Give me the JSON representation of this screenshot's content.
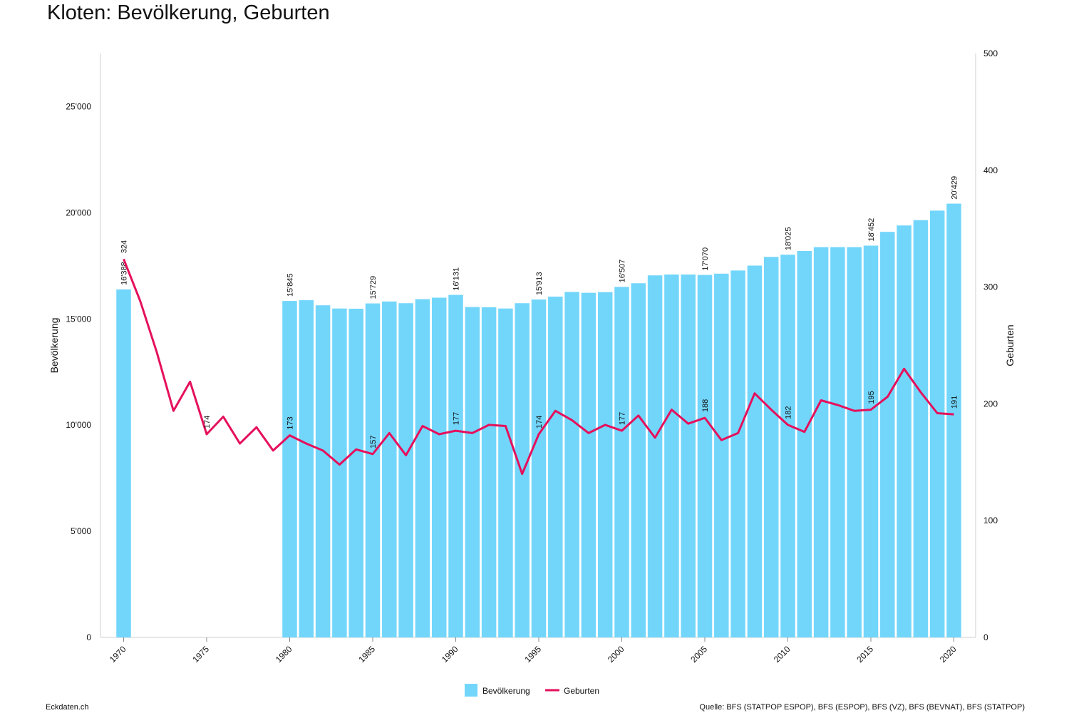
{
  "page": {
    "title": "Kloten: Bevölkerung, Geburten",
    "footer_left": "Eckdaten.ch",
    "footer_right": "Quelle: BFS (STATPOP ESPOP), BFS (ESPOP), BFS (VZ), BFS (BEVNAT), BFS (STATPOP)"
  },
  "chart_data": {
    "type": "bar",
    "x_label_years": [
      1970,
      1975,
      1980,
      1985,
      1990,
      1995,
      2000,
      2005,
      2010,
      2015,
      2020
    ],
    "ylabel_left": "Bevölkerung",
    "ylabel_right": "Geburten",
    "ylim_left": [
      0,
      27500
    ],
    "yticks_left": [
      0,
      5000,
      10000,
      15000,
      20000,
      25000
    ],
    "ytick_labels_left": [
      "0",
      "5'000",
      "10'000",
      "15'000",
      "20'000",
      "25'000"
    ],
    "ylim_right": [
      0,
      500
    ],
    "yticks_right": [
      0,
      100,
      200,
      300,
      400,
      500
    ],
    "ytick_labels_right": [
      "0",
      "100",
      "200",
      "300",
      "400",
      "500"
    ],
    "xlim": [
      1969,
      2021
    ],
    "legend": [
      "Bevölkerung",
      "Geburten"
    ],
    "legend_position": "bottom-center",
    "colors": {
      "bars": "#72d6fb",
      "line": "#e5105c"
    },
    "series": [
      {
        "name": "Bevölkerung",
        "type": "bar",
        "x": [
          1970,
          1980,
          1981,
          1982,
          1983,
          1984,
          1985,
          1986,
          1987,
          1988,
          1989,
          1990,
          1991,
          1992,
          1993,
          1994,
          1995,
          1996,
          1997,
          1998,
          1999,
          2000,
          2001,
          2002,
          2003,
          2004,
          2005,
          2006,
          2007,
          2008,
          2009,
          2010,
          2011,
          2012,
          2013,
          2014,
          2015,
          2016,
          2017,
          2018,
          2019,
          2020
        ],
        "values": [
          16388,
          15845,
          15880,
          15640,
          15490,
          15480,
          15729,
          15820,
          15740,
          15930,
          16000,
          16131,
          15560,
          15550,
          15490,
          15740,
          15913,
          16050,
          16270,
          16230,
          16260,
          16507,
          16680,
          17050,
          17090,
          17090,
          17070,
          17130,
          17280,
          17510,
          17920,
          18025,
          18200,
          18380,
          18380,
          18380,
          18452,
          19100,
          19400,
          19650,
          20100,
          20429
        ],
        "data_labels": {
          "1970": "16'388",
          "1980": "15'845",
          "1985": "15'729",
          "1990": "16'131",
          "1995": "15'913",
          "2000": "16'507",
          "2005": "17'070",
          "2010": "18'025",
          "2015": "18'452",
          "2020": "20'429"
        }
      },
      {
        "name": "Geburten",
        "type": "line",
        "x": [
          1970,
          1971,
          1972,
          1973,
          1974,
          1975,
          1976,
          1977,
          1978,
          1979,
          1980,
          1981,
          1982,
          1983,
          1984,
          1985,
          1986,
          1987,
          1988,
          1989,
          1990,
          1991,
          1992,
          1993,
          1994,
          1995,
          1996,
          1997,
          1998,
          1999,
          2000,
          2001,
          2002,
          2003,
          2004,
          2005,
          2006,
          2007,
          2008,
          2009,
          2010,
          2011,
          2012,
          2013,
          2014,
          2015,
          2016,
          2017,
          2018,
          2019,
          2020
        ],
        "values": [
          324,
          288,
          244,
          194,
          219,
          174,
          189,
          166,
          180,
          160,
          173,
          166,
          160,
          148,
          161,
          157,
          175,
          156,
          181,
          174,
          177,
          175,
          182,
          181,
          140,
          174,
          194,
          186,
          175,
          182,
          177,
          190,
          171,
          195,
          183,
          188,
          169,
          175,
          209,
          195,
          182,
          176,
          203,
          199,
          194,
          195,
          206,
          230,
          210,
          192,
          191
        ],
        "data_labels": {
          "1970": "324",
          "1975": "174",
          "1980": "173",
          "1985": "157",
          "1990": "177",
          "1995": "174",
          "2000": "177",
          "2005": "188",
          "2010": "182",
          "2015": "195",
          "2020": "191"
        }
      }
    ]
  }
}
